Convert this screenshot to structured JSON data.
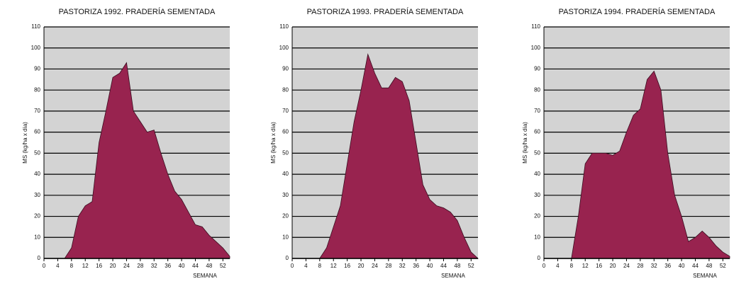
{
  "chart_data": [
    {
      "type": "area",
      "title": "PASTORIZA 1992. PRADERÍA SEMENTADA",
      "x_label": "SEMANA",
      "y_label": "MS (kg/ha x día)",
      "color": "#98234f",
      "background": "#d3d3d3",
      "grid": true,
      "x": [
        0,
        2,
        4,
        6,
        8,
        10,
        12,
        14,
        16,
        18,
        20,
        22,
        24,
        26,
        28,
        30,
        32,
        34,
        36,
        38,
        40,
        42,
        44,
        46,
        48,
        50,
        52,
        54
      ],
      "values": [
        0,
        0,
        0,
        0,
        5,
        20,
        25,
        27,
        55,
        70,
        86,
        88,
        93,
        70,
        65,
        60,
        61,
        50,
        40,
        32,
        28,
        22,
        16,
        15,
        11,
        8,
        5,
        1
      ],
      "xlim": [
        0,
        54
      ],
      "xticks": [
        0,
        4,
        8,
        12,
        16,
        20,
        24,
        28,
        32,
        36,
        40,
        44,
        48,
        52
      ],
      "ylim": [
        0,
        110
      ],
      "yticks": [
        0,
        10,
        20,
        30,
        40,
        50,
        60,
        70,
        80,
        90,
        100,
        110
      ]
    },
    {
      "type": "area",
      "title": "PASTORIZA 1993. PRADERÍA SEMENTADA",
      "x_label": "SEMANA",
      "y_label": "MS (kg/ha x día)",
      "color": "#98234f",
      "background": "#d3d3d3",
      "grid": true,
      "x": [
        0,
        2,
        4,
        6,
        8,
        10,
        12,
        14,
        16,
        18,
        20,
        22,
        24,
        26,
        28,
        30,
        32,
        34,
        36,
        38,
        40,
        42,
        44,
        46,
        48,
        50,
        52,
        54
      ],
      "values": [
        0,
        0,
        0,
        0,
        0,
        5,
        15,
        25,
        45,
        65,
        80,
        97,
        88,
        81,
        81,
        86,
        84,
        75,
        55,
        35,
        28,
        25,
        24,
        22,
        18,
        10,
        3,
        0
      ],
      "xlim": [
        0,
        54
      ],
      "xticks": [
        0,
        4,
        8,
        12,
        16,
        20,
        24,
        28,
        32,
        36,
        40,
        44,
        48,
        52
      ],
      "ylim": [
        0,
        110
      ],
      "yticks": [
        0,
        10,
        20,
        30,
        40,
        50,
        60,
        70,
        80,
        90,
        100,
        110
      ]
    },
    {
      "type": "area",
      "title": "PASTORIZA 1994. PRADERÍA SEMENTADA",
      "x_label": "SEMANA",
      "y_label": "MS (kg/ha x día)",
      "color": "#98234f",
      "background": "#d3d3d3",
      "grid": true,
      "x": [
        0,
        2,
        4,
        6,
        8,
        10,
        12,
        14,
        16,
        18,
        20,
        22,
        24,
        26,
        28,
        30,
        32,
        34,
        36,
        38,
        40,
        42,
        44,
        46,
        48,
        50,
        52,
        54
      ],
      "values": [
        0,
        0,
        0,
        0,
        0,
        20,
        45,
        50,
        50,
        50,
        49,
        51,
        60,
        68,
        71,
        85,
        89,
        80,
        50,
        30,
        20,
        8,
        10,
        13,
        10,
        6,
        3,
        1
      ],
      "xlim": [
        0,
        54
      ],
      "xticks": [
        0,
        4,
        8,
        12,
        16,
        20,
        24,
        28,
        32,
        36,
        40,
        44,
        48,
        52
      ],
      "ylim": [
        0,
        110
      ],
      "yticks": [
        0,
        10,
        20,
        30,
        40,
        50,
        60,
        70,
        80,
        90,
        100,
        110
      ]
    }
  ]
}
